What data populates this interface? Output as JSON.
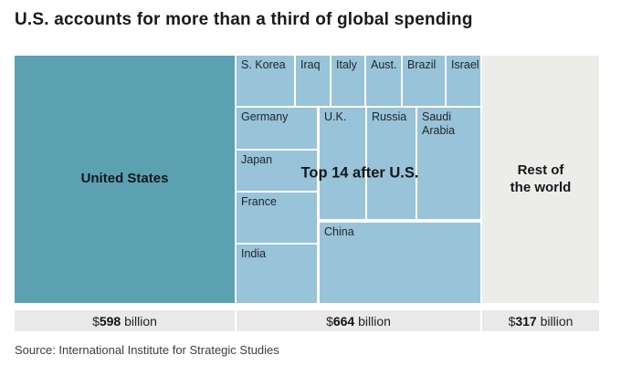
{
  "title": "U.S. accounts for more than a third of global spending",
  "source": "Source: International Institute for Strategic Studies",
  "treemap": {
    "us_label": "United States",
    "top14_label": "Top 14 after U.S.",
    "rest_label_line1": "Rest of",
    "rest_label_line2": "the world",
    "cells": {
      "skorea": "S. Korea",
      "iraq": "Iraq",
      "italy": "Italy",
      "aust": "Aust.",
      "brazil": "Brazil",
      "israel": "Israel",
      "germany": "Germany",
      "uk": "U.K.",
      "russia": "Russia",
      "saudi": "Saudi Arabia",
      "japan": "Japan",
      "france": "France",
      "india": "India",
      "china": "China"
    }
  },
  "totals": {
    "us": {
      "currency": "$",
      "value": "598",
      "suffix": " billion"
    },
    "top14": {
      "currency": "$",
      "value": "664",
      "suffix": " billion"
    },
    "rest": {
      "currency": "$",
      "value": "317",
      "suffix": " billion"
    }
  },
  "colors": {
    "us_block": "#5ba1b2",
    "top14_cells": "#98c3d8",
    "rest_block": "#ecede9",
    "total_bar": "#e9e9e7",
    "title_text": "#1a1a1a"
  },
  "chart_data": {
    "type": "treemap",
    "title": "U.S. accounts for more than a third of global spending",
    "source": "Source: International Institute for Strategic Studies",
    "unit": "US$ billion",
    "groups": [
      {
        "label": "United States",
        "value_billion": 598,
        "value_label": "$598 billion"
      },
      {
        "label": "Top 14 after U.S.",
        "value_billion": 664,
        "value_label": "$664 billion",
        "members": [
          "S. Korea",
          "Iraq",
          "Italy",
          "Aust.",
          "Brazil",
          "Israel",
          "Germany",
          "U.K.",
          "Russia",
          "Saudi Arabia",
          "Japan",
          "France",
          "India",
          "China"
        ]
      },
      {
        "label": "Rest of the world",
        "value_billion": 317,
        "value_label": "$317 billion"
      }
    ]
  }
}
